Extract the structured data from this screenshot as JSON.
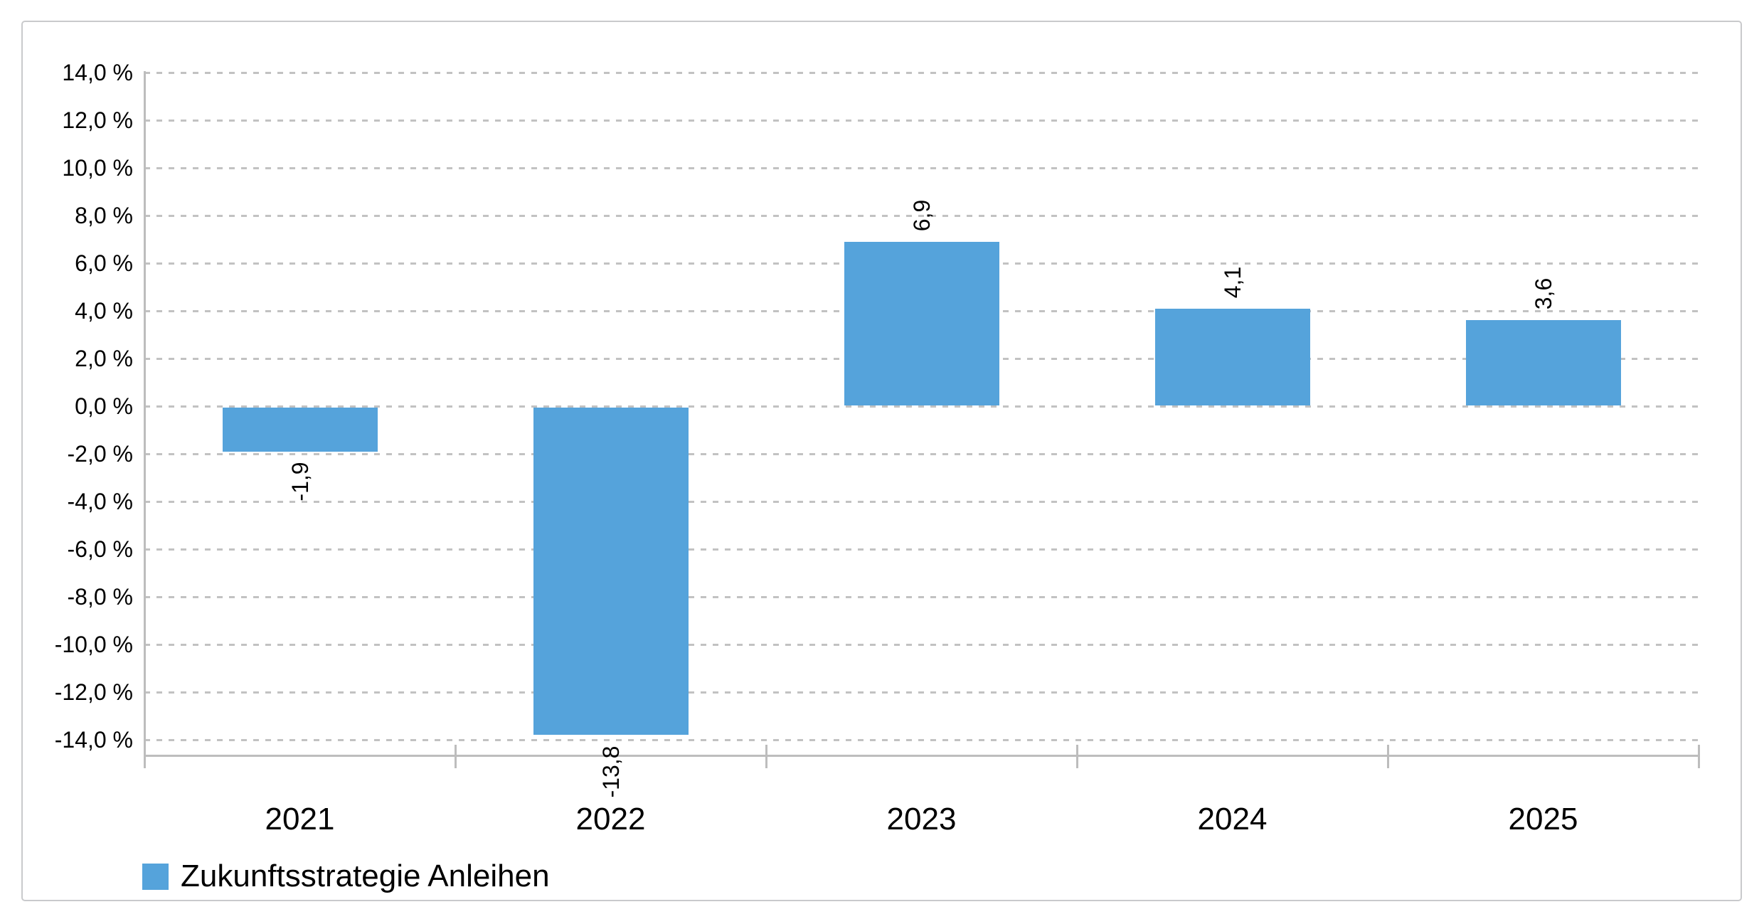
{
  "chart_data": {
    "type": "bar",
    "title": "",
    "xlabel": "",
    "ylabel": "",
    "categories": [
      "2021",
      "2022",
      "2023",
      "2024",
      "2025"
    ],
    "series": [
      {
        "name": "Zukunftsstrategie Anleihen",
        "color": "#55A3DB",
        "values": [
          -1.9,
          -13.8,
          6.9,
          4.1,
          3.6
        ]
      }
    ],
    "value_labels": [
      "-1,9",
      "-13,8",
      "6,9",
      "4,1",
      "3,6"
    ],
    "y_axis": {
      "min": -14,
      "max": 14,
      "step": 2,
      "unit": "%",
      "ticks": [
        14,
        12,
        10,
        8,
        6,
        4,
        2,
        0,
        -2,
        -4,
        -6,
        -8,
        -10,
        -12,
        -14
      ],
      "tick_labels": [
        "14,0 %",
        "12,0 %",
        "10,0 %",
        "8,0 %",
        "6,0 %",
        "4,0 %",
        "2,0 %",
        "0,0 %",
        "-2,0 %",
        "-4,0 %",
        "-6,0 %",
        "-8,0 %",
        "-10,0 %",
        "-12,0 %",
        "-14,0 %"
      ]
    },
    "grid": {
      "horizontal": true,
      "vertical": false,
      "style": "dashed"
    },
    "legend": {
      "position": "bottom-left",
      "entries": [
        {
          "label": "Zukunftsstrategie Anleihen",
          "color": "#55A3DB"
        }
      ]
    },
    "colors": {
      "bar": "#55A3DB",
      "axis_line": "#BDBDBD",
      "gridline": "#C2C2C2",
      "frame_border": "#C9CACC",
      "label_text": "#000000"
    }
  }
}
